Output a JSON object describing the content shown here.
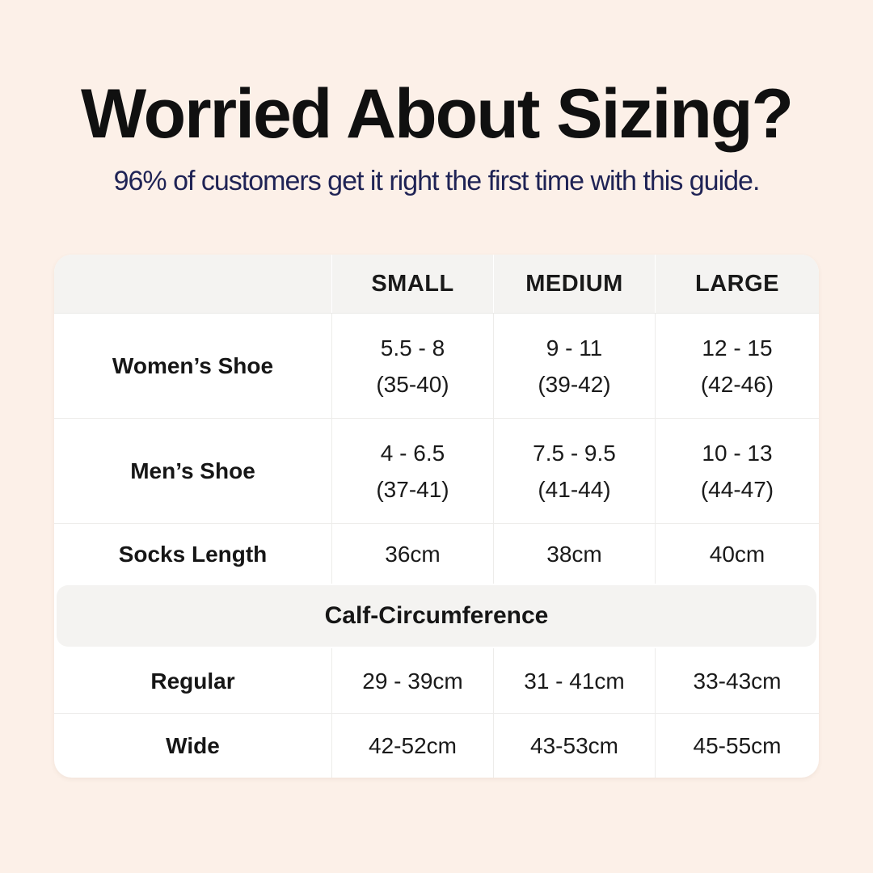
{
  "header": {
    "title": "Worried About Sizing?",
    "subtitle": "96% of customers get it right the first time with this guide."
  },
  "size_table": {
    "column_headers": {
      "small": "SMALL",
      "medium": "MEDIUM",
      "large": "LARGE"
    },
    "rows": [
      {
        "label": "Women’s Shoe",
        "cells": [
          {
            "line1": "5.5 - 8",
            "line2": "(35-40)"
          },
          {
            "line1": "9 - 11",
            "line2": "(39-42)"
          },
          {
            "line1": "12 - 15",
            "line2": "(42-46)"
          }
        ]
      },
      {
        "label": "Men’s Shoe",
        "cells": [
          {
            "line1": "4 - 6.5",
            "line2": "(37-41)"
          },
          {
            "line1": "7.5 - 9.5",
            "line2": "(41-44)"
          },
          {
            "line1": "10 - 13",
            "line2": "(44-47)"
          }
        ]
      },
      {
        "label": "Socks Length",
        "cells": [
          {
            "line1": "36cm"
          },
          {
            "line1": "38cm"
          },
          {
            "line1": "40cm"
          }
        ]
      }
    ],
    "calf_section": {
      "title": "Calf-Circumference",
      "rows": [
        {
          "label": "Regular",
          "cells": [
            {
              "line1": "29 - 39cm"
            },
            {
              "line1": "31 - 41cm"
            },
            {
              "line1": "33-43cm"
            }
          ]
        },
        {
          "label": "Wide",
          "cells": [
            {
              "line1": "42-52cm"
            },
            {
              "line1": "43-53cm"
            },
            {
              "line1": "45-55cm"
            }
          ]
        }
      ]
    }
  },
  "colors": {
    "page_background": "#fcf0e8",
    "card_background": "#ffffff",
    "band_background": "#f4f3f1",
    "title_text": "#101010",
    "subtitle_text": "#1f2355",
    "table_text": "#1a1a1a",
    "divider": "#edecea"
  },
  "chart_data": {
    "type": "table",
    "title": "Worried About Sizing?",
    "subtitle": "96% of customers get it right the first time with this guide.",
    "columns": [
      "",
      "SMALL",
      "MEDIUM",
      "LARGE"
    ],
    "rows": [
      [
        "Women’s Shoe",
        "5.5 - 8 (35-40)",
        "9 - 11 (39-42)",
        "12 - 15 (42-46)"
      ],
      [
        "Men’s Shoe",
        "4 - 6.5 (37-41)",
        "7.5 - 9.5 (41-44)",
        "10 - 13 (44-47)"
      ],
      [
        "Socks Length",
        "36cm",
        "38cm",
        "40cm"
      ],
      [
        "Calf-Circumference",
        "",
        "",
        ""
      ],
      [
        "Regular",
        "29 - 39cm",
        "31 - 41cm",
        "33-43cm"
      ],
      [
        "Wide",
        "42-52cm",
        "43-53cm",
        "45-55cm"
      ]
    ],
    "layout": {
      "section_band_row": "Calf-Circumference spans all columns",
      "grid": "light gray dividers, rounded white card on peach background"
    }
  }
}
